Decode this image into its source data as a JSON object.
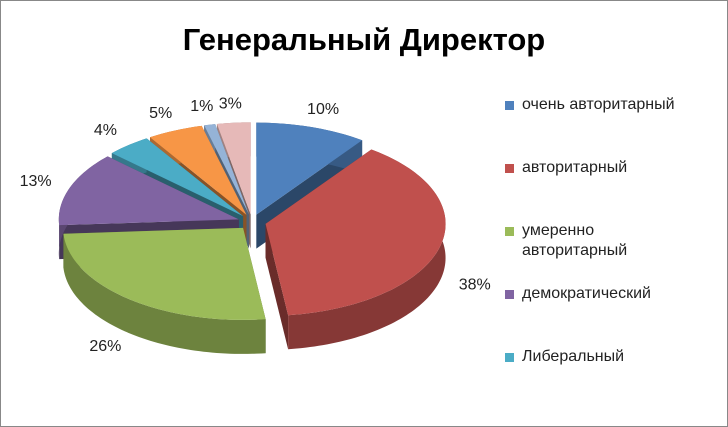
{
  "chart_data": {
    "type": "pie",
    "title": "Генеральный Директор",
    "categories": [
      "очень авторитарный",
      "авторитарный",
      "умеренно авторитарный",
      "демократический",
      "Либеральный",
      null,
      null,
      null
    ],
    "values": [
      10,
      38,
      26,
      13,
      4,
      5,
      1,
      3
    ],
    "value_labels": [
      "10%",
      "38%",
      "26%",
      "13%",
      "4%",
      "5%",
      "1%",
      "3%"
    ],
    "colors": [
      "#4f81bd",
      "#c0504d",
      "#9bbb59",
      "#8064a2",
      "#4bacc6",
      "#f79646",
      "#95b3d7",
      "#e6b9b8"
    ],
    "legend": "right"
  }
}
